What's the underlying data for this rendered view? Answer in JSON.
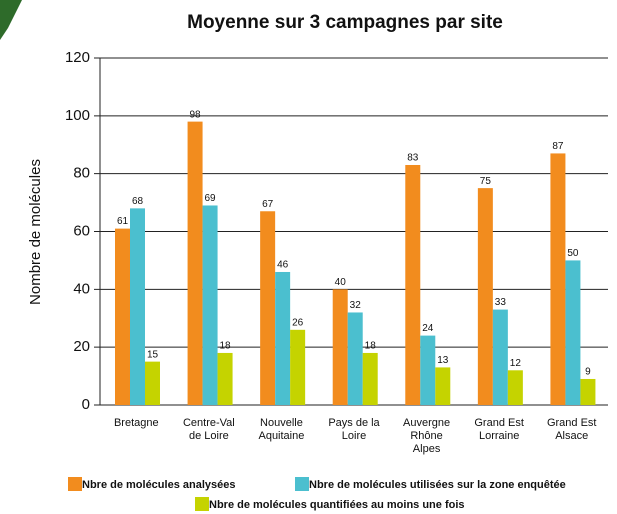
{
  "chart_data": {
    "type": "bar",
    "title": "Moyenne sur 3 campagnes par site",
    "ylabel": "Nombre de molécules",
    "categories": [
      "Bretagne",
      "Centre-Val\nde Loire",
      "Nouvelle\nAquitaine",
      "Pays de la\nLoire",
      "Auvergne\nRhône\nAlpes",
      "Grand Est\nLorraine",
      "Grand Est\nAlsace"
    ],
    "series": [
      {
        "name": "Nbre de molécules analysées",
        "color": "#f28c1e",
        "values": [
          61,
          98,
          67,
          40,
          83,
          75,
          87
        ]
      },
      {
        "name": "Nbre de molécules utilisées sur la zone enquêtée",
        "color": "#4bbfcf",
        "values": [
          68,
          69,
          46,
          32,
          24,
          33,
          50
        ]
      },
      {
        "name": "Nbre de molécules quantifiées au moins une fois",
        "color": "#c5d300",
        "values": [
          15,
          18,
          26,
          18,
          13,
          12,
          9
        ]
      }
    ],
    "ylim": [
      0,
      120
    ],
    "yticks": [
      0,
      20,
      40,
      60,
      80,
      100,
      120
    ],
    "grid": true
  }
}
